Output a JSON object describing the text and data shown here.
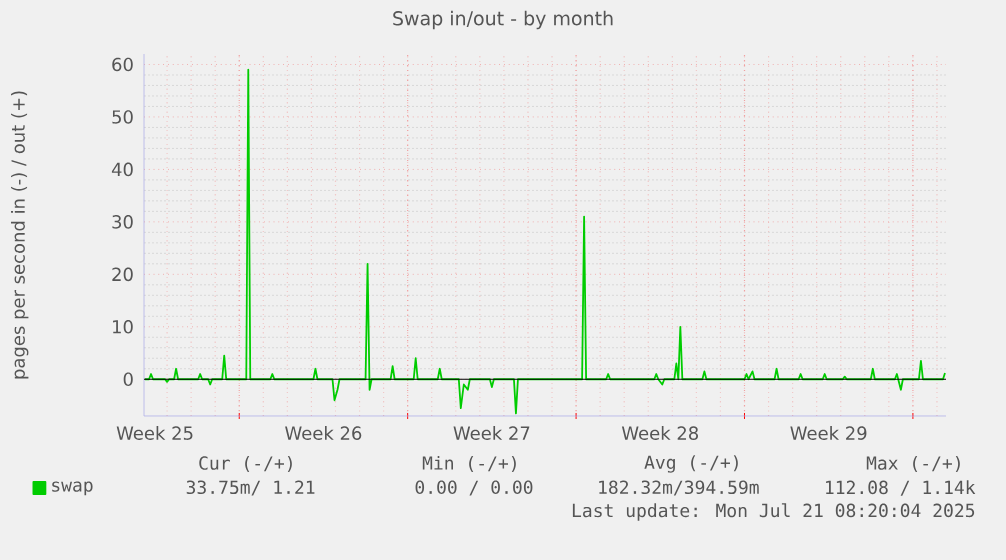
{
  "chart_data": {
    "type": "line",
    "title": "Swap in/out - by month",
    "ylabel": "pages per second in (-) / out (+)",
    "xlim": [
      "2025-06-19T01:00",
      "2025-07-22T09:00"
    ],
    "xticks": [
      {
        "value": "2025-06-19T12:00",
        "label": "Week 25"
      },
      {
        "value": "2025-06-26T12:00",
        "label": "Week 26"
      },
      {
        "value": "2025-07-03T12:00",
        "label": "Week 27"
      },
      {
        "value": "2025-07-10T12:00",
        "label": "Week 28"
      },
      {
        "value": "2025-07-17T12:00",
        "label": "Week 29"
      },
      {
        "value": "2025-06-23T00:00",
        "label": null
      },
      {
        "value": "2025-06-30T00:00",
        "label": null
      },
      {
        "value": "2025-07-07T00:00",
        "label": null
      },
      {
        "value": "2025-07-14T00:00",
        "label": null
      },
      {
        "value": "2025-07-21T00:00",
        "label": null
      }
    ],
    "ylim": [
      -7,
      62
    ],
    "yticks": [
      0,
      10,
      20,
      30,
      40,
      50,
      60
    ],
    "grid": true,
    "legend": "bottom left",
    "ref_lines": [
      {
        "axis": "y",
        "value": 0,
        "color": "#000000"
      }
    ],
    "series": [
      {
        "name": "swap",
        "color": "#00cc00",
        "x": [
          "2025-06-19T02:00",
          "2025-06-19T06:00",
          "2025-06-19T08:00",
          "2025-06-19T10:00",
          "2025-06-19T22:00",
          "2025-06-20T00:00",
          "2025-06-20T02:00",
          "2025-06-20T07:00",
          "2025-06-20T09:00",
          "2025-06-20T11:00",
          "2025-06-21T07:00",
          "2025-06-21T09:00",
          "2025-06-21T11:00",
          "2025-06-21T17:00",
          "2025-06-21T19:00",
          "2025-06-21T21:00",
          "2025-06-22T07:00",
          "2025-06-22T09:00",
          "2025-06-22T11:00",
          "2025-06-23T07:00",
          "2025-06-23T09:00",
          "2025-06-23T11:00",
          "2025-06-24T07:00",
          "2025-06-24T09:00",
          "2025-06-24T11:00",
          "2025-06-26T02:00",
          "2025-06-26T04:00",
          "2025-06-26T06:00",
          "2025-06-26T21:00",
          "2025-06-26T23:00",
          "2025-06-27T02:00",
          "2025-06-27T04:00",
          "2025-06-28T06:00",
          "2025-06-28T08:00",
          "2025-06-28T10:00",
          "2025-06-28T12:00",
          "2025-06-29T07:00",
          "2025-06-29T09:00",
          "2025-06-29T11:00",
          "2025-06-30T06:00",
          "2025-06-30T08:00",
          "2025-06-30T10:00",
          "2025-07-01T06:00",
          "2025-07-01T08:00",
          "2025-07-01T10:00",
          "2025-07-02T03:00",
          "2025-07-02T05:00",
          "2025-07-02T08:00",
          "2025-07-02T12:00",
          "2025-07-02T14:00",
          "2025-07-03T10:00",
          "2025-07-03T12:00",
          "2025-07-03T14:00",
          "2025-07-04T10:00",
          "2025-07-04T12:00",
          "2025-07-04T14:00",
          "2025-07-07T06:00",
          "2025-07-07T08:00",
          "2025-07-07T10:00",
          "2025-07-08T06:00",
          "2025-07-08T08:00",
          "2025-07-08T10:00",
          "2025-07-10T06:00",
          "2025-07-10T08:00",
          "2025-07-10T10:00",
          "2025-07-10T14:00",
          "2025-07-10T16:00",
          "2025-07-11T02:00",
          "2025-07-11T04:00",
          "2025-07-11T06:00",
          "2025-07-11T08:00",
          "2025-07-11T10:00",
          "2025-07-12T06:00",
          "2025-07-12T08:00",
          "2025-07-12T10:00",
          "2025-07-14T00:00",
          "2025-07-14T02:00",
          "2025-07-14T04:00",
          "2025-07-14T08:00",
          "2025-07-14T10:00",
          "2025-07-15T06:00",
          "2025-07-15T08:00",
          "2025-07-15T10:00",
          "2025-07-16T06:00",
          "2025-07-16T08:00",
          "2025-07-16T10:00",
          "2025-07-17T06:00",
          "2025-07-17T08:00",
          "2025-07-17T10:00",
          "2025-07-18T02:00",
          "2025-07-18T04:00",
          "2025-07-18T06:00",
          "2025-07-19T06:00",
          "2025-07-19T08:00",
          "2025-07-19T10:00",
          "2025-07-20T06:00",
          "2025-07-20T08:00",
          "2025-07-20T12:00",
          "2025-07-20T14:00",
          "2025-07-21T06:00",
          "2025-07-21T08:00",
          "2025-07-21T10:00",
          "2025-07-22T06:00",
          "2025-07-22T08:00"
        ],
        "values": [
          0,
          0,
          1,
          0,
          0,
          -0.5,
          0,
          0,
          2,
          0,
          0,
          1,
          0,
          0,
          -1,
          0,
          0,
          4.5,
          0,
          0,
          59,
          0,
          0,
          1,
          0,
          0,
          2,
          0,
          0,
          -4,
          -2,
          0,
          0,
          22,
          -2,
          0,
          0,
          2.5,
          0,
          0,
          4,
          0,
          0,
          2,
          0,
          0,
          -5.5,
          -1,
          -2,
          0,
          0,
          -1.5,
          0,
          0,
          -6.5,
          0,
          0,
          31,
          0,
          0,
          1,
          0,
          0,
          1,
          0,
          -1,
          0,
          0,
          3,
          0,
          10,
          0,
          0,
          1.5,
          0,
          0,
          1,
          0,
          1.5,
          0,
          0,
          2,
          0,
          0,
          1,
          0,
          0,
          1,
          0,
          0,
          0.5,
          0,
          0,
          2,
          0,
          0,
          1,
          -2,
          0,
          0,
          3.5,
          0,
          0,
          1.2
        ]
      }
    ],
    "annotations": [
      "Cur (-/+)",
      "Min (-/+)",
      "Avg (-/+)",
      "Max (-/+)",
      "33.75m/ 1.21",
      "0.00 / 0.00",
      "182.32m/394.59m",
      "112.08 / 1.14k",
      "Last update: Mon Jul 21 08:20:04 2025"
    ]
  }
}
